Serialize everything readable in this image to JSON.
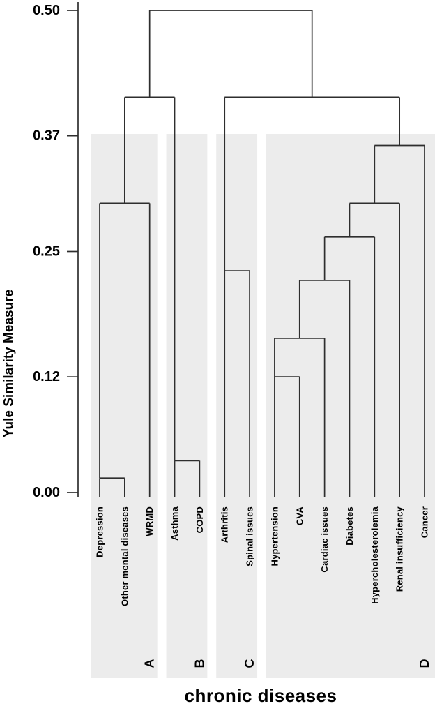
{
  "chart_data": {
    "type": "dendrogram",
    "title": "",
    "xlabel": "chronic diseases",
    "ylabel": "Yule Similarity Measure",
    "ylim": [
      0.0,
      0.5
    ],
    "grid": false,
    "y_ticks": [
      {
        "label": "0.50",
        "value": 0.5
      },
      {
        "label": "0.37",
        "value": 0.37
      },
      {
        "label": "0.25",
        "value": 0.25
      },
      {
        "label": "0.12",
        "value": 0.12
      },
      {
        "label": "0.00",
        "value": 0.0
      }
    ],
    "leaves": [
      "Depression",
      "Other mental diseases",
      "WRMD",
      "Asthma",
      "COPD",
      "Arthritis",
      "Spinal issues",
      "Hypertension",
      "CVA",
      "Cardiac issues",
      "Diabetes",
      "Hypercholesterolemia",
      "Renal insufficiency",
      "Cancer"
    ],
    "groups": [
      {
        "label": "A",
        "first_leaf": 0,
        "last_leaf": 2
      },
      {
        "label": "B",
        "first_leaf": 3,
        "last_leaf": 4
      },
      {
        "label": "C",
        "first_leaf": 5,
        "last_leaf": 6
      },
      {
        "label": "D",
        "first_leaf": 7,
        "last_leaf": 13
      }
    ],
    "tree": {
      "height": 0.5,
      "anchor": "mid",
      "children": [
        {
          "height": 0.41,
          "anchor": "mid",
          "children": [
            {
              "height": 0.3,
              "anchor": "mid",
              "children": [
                {
                  "height": 0.015,
                  "anchor": "left",
                  "children": [
                    {
                      "leaf": "Depression"
                    },
                    {
                      "leaf": "Other mental diseases"
                    }
                  ]
                },
                {
                  "leaf": "WRMD"
                }
              ]
            },
            {
              "height": 0.033,
              "anchor": "left",
              "children": [
                {
                  "leaf": "Asthma"
                },
                {
                  "leaf": "COPD"
                }
              ]
            }
          ]
        },
        {
          "height": 0.41,
          "anchor": "mid",
          "children": [
            {
              "height": 0.23,
              "anchor": "left",
              "children": [
                {
                  "leaf": "Arthritis"
                },
                {
                  "leaf": "Spinal issues"
                }
              ]
            },
            {
              "height": 0.36,
              "anchor": "mid",
              "children": [
                {
                  "height": 0.3,
                  "anchor": "mid",
                  "children": [
                    {
                      "height": 0.265,
                      "anchor": "mid",
                      "children": [
                        {
                          "height": 0.22,
                          "anchor": "mid",
                          "children": [
                            {
                              "height": 0.16,
                              "anchor": "mid",
                              "children": [
                                {
                                  "height": 0.12,
                                  "anchor": "left",
                                  "children": [
                                    {
                                      "leaf": "Hypertension"
                                    },
                                    {
                                      "leaf": "CVA"
                                    }
                                  ]
                                },
                                {
                                  "leaf": "Cardiac issues"
                                }
                              ]
                            },
                            {
                              "leaf": "Diabetes"
                            }
                          ]
                        },
                        {
                          "leaf": "Hypercholesterolemia"
                        }
                      ]
                    },
                    {
                      "leaf": "Renal insufficiency"
                    }
                  ]
                },
                {
                  "leaf": "Cancer"
                }
              ]
            }
          ]
        }
      ]
    },
    "colors": {
      "line": "#2e2e2e",
      "cluster_box": "#ececec",
      "text": "#000000",
      "background": "#ffffff"
    }
  }
}
